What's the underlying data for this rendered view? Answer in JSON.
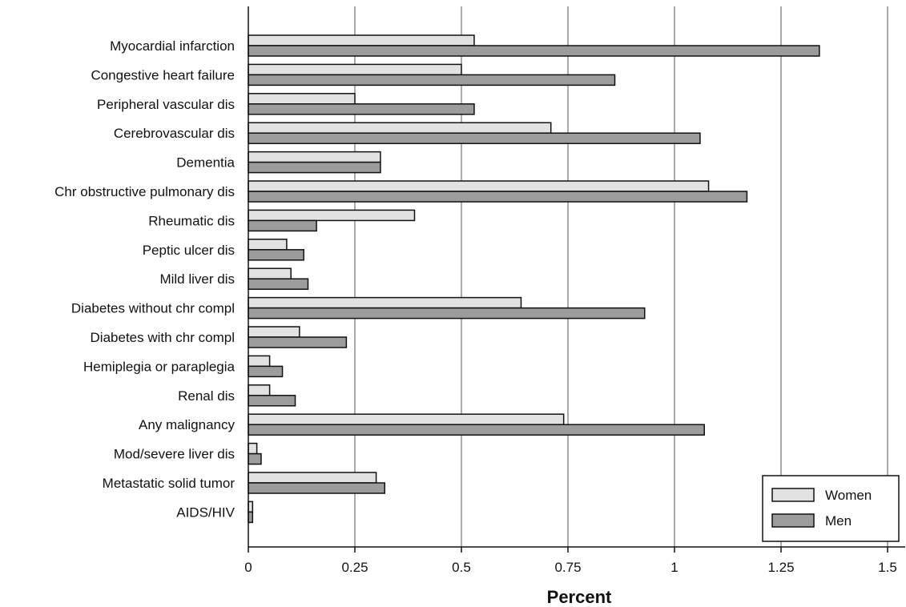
{
  "chart_data": {
    "type": "bar",
    "orientation": "horizontal",
    "categories": [
      "Myocardial infarction",
      "Congestive heart failure",
      "Peripheral vascular dis",
      "Cerebrovascular dis",
      "Dementia",
      "Chr obstructive pulmonary dis",
      "Rheumatic dis",
      "Peptic ulcer dis",
      "Mild liver dis",
      "Diabetes without chr compl",
      "Diabetes with chr compl",
      "Hemiplegia or paraplegia",
      "Renal dis",
      "Any malignancy",
      "Mod/severe liver dis",
      "Metastatic solid tumor",
      "AIDS/HIV"
    ],
    "series": [
      {
        "name": "Women",
        "color": "#e2e2e2",
        "values": [
          0.53,
          0.5,
          0.25,
          0.71,
          0.31,
          1.08,
          0.39,
          0.09,
          0.1,
          0.64,
          0.12,
          0.05,
          0.05,
          0.74,
          0.02,
          0.3,
          0.01
        ]
      },
      {
        "name": "Men",
        "color": "#9c9c9c",
        "values": [
          1.34,
          0.86,
          0.53,
          1.06,
          0.31,
          1.17,
          0.16,
          0.13,
          0.14,
          0.93,
          0.23,
          0.08,
          0.11,
          1.07,
          0.03,
          0.32,
          0.01
        ]
      }
    ],
    "xlabel": "Percent",
    "xlim": [
      0,
      1.5
    ],
    "ticks": [
      0,
      0.25,
      0.5,
      0.75,
      1,
      1.25,
      1.5
    ],
    "tick_labels": [
      "0",
      "0.25",
      "0.5",
      "0.75",
      "1",
      "1.25",
      "1.5"
    ],
    "grid": "vertical",
    "legend": "bottom-right"
  }
}
